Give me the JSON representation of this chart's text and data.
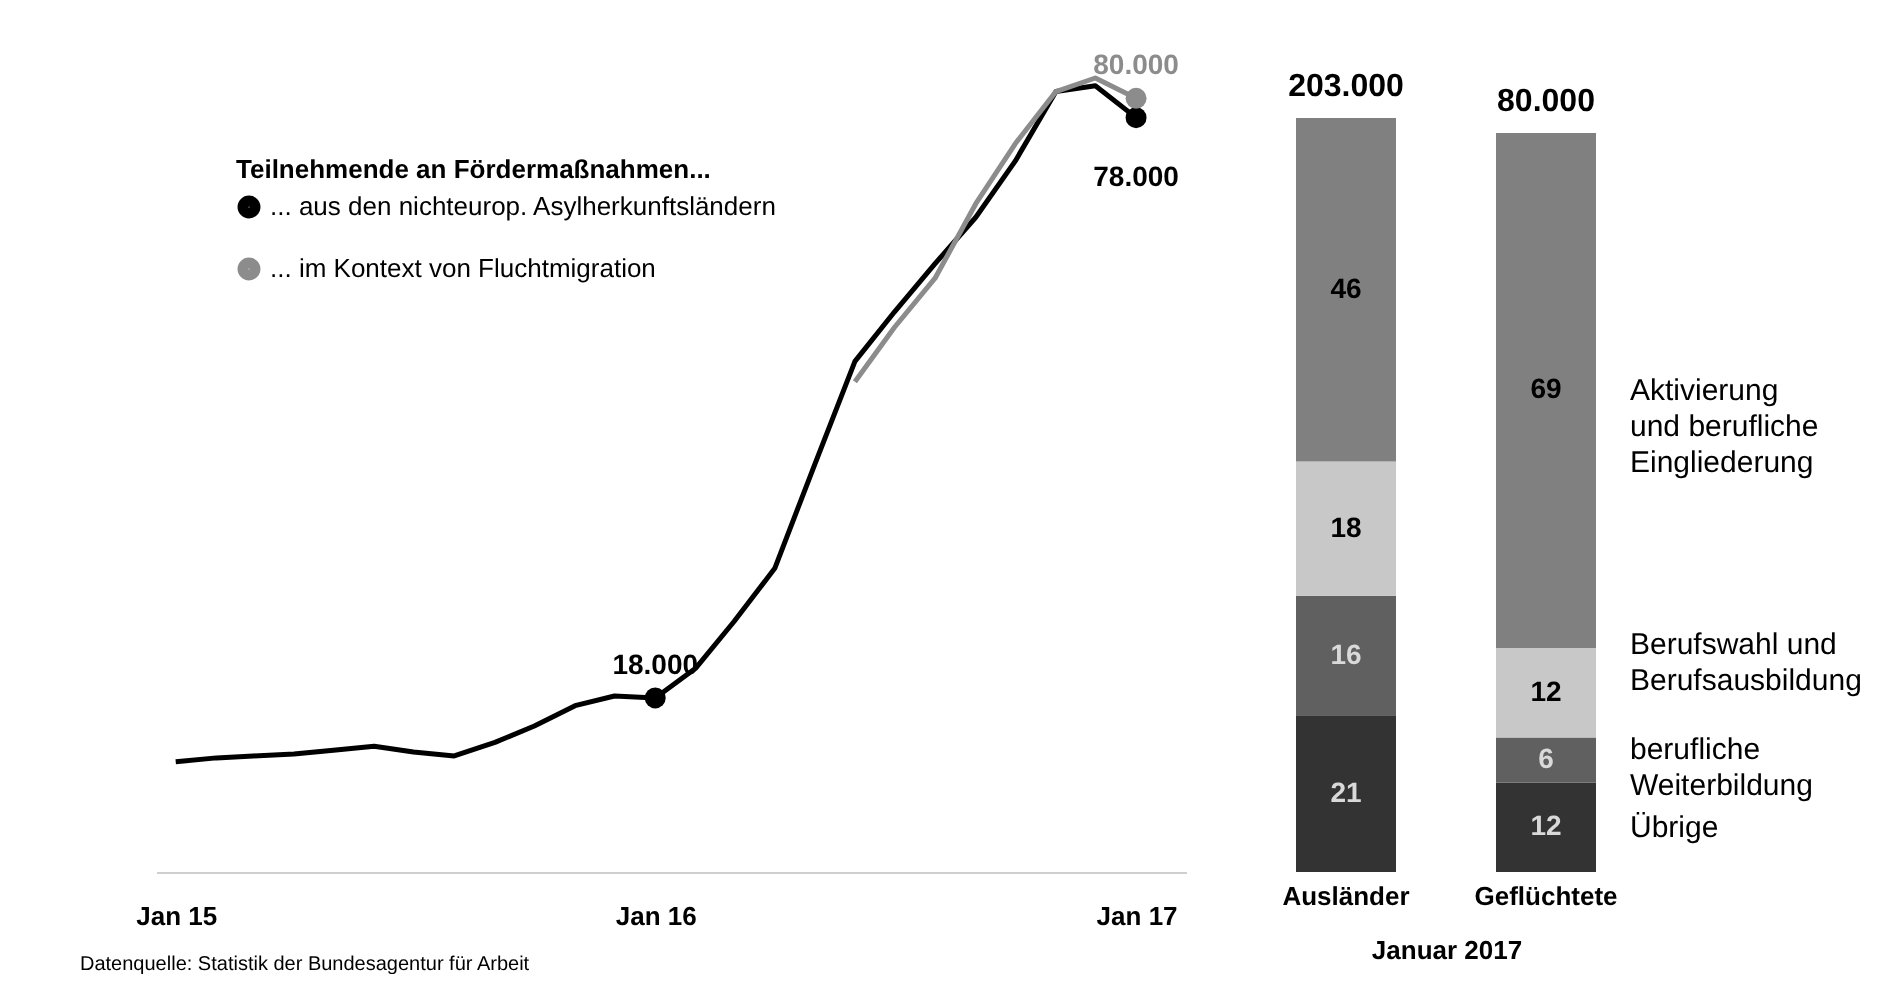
{
  "chart_data": [
    {
      "type": "line",
      "legend_title": "Teilnehmende an Fördermaßnahmen...",
      "legend": "top left",
      "tick_labels": "x",
      "grid": false,
      "x": [
        "2015-01",
        "2015-02",
        "2015-03",
        "2015-04",
        "2015-05",
        "2015-06",
        "2015-07",
        "2015-08",
        "2015-09",
        "2015-10",
        "2015-11",
        "2015-12",
        "2016-01",
        "2016-02",
        "2016-03",
        "2016-04",
        "2016-05",
        "2016-06",
        "2016-07",
        "2016-08",
        "2016-09",
        "2016-10",
        "2016-11",
        "2016-12",
        "2017-01"
      ],
      "xlim": [
        "2014-12-17",
        "2017-02-08"
      ],
      "xticks": [
        {
          "value": "2015-01",
          "label": "Jan 15"
        },
        {
          "value": "2016-01",
          "label": "Jan 16"
        },
        {
          "value": "2017-01",
          "label": "Jan 17"
        }
      ],
      "series": [
        {
          "name": "... aus den nichteurop. Asylherkunftsländern",
          "color": "#000000",
          "values": [
            11400,
            11800,
            12000,
            12200,
            12600,
            13000,
            12400,
            12000,
            13400,
            15100,
            17200,
            18200,
            18000,
            21100,
            25900,
            31400,
            42000,
            52800,
            57900,
            62900,
            67700,
            73500,
            80700,
            81300,
            78000
          ],
          "value_labels": [
            null,
            null,
            null,
            null,
            null,
            null,
            null,
            null,
            null,
            null,
            null,
            null,
            "18.000",
            null,
            null,
            null,
            null,
            null,
            null,
            null,
            null,
            null,
            null,
            null,
            "78.000"
          ]
        },
        {
          "name": "... im Kontext von Fluchtmigration",
          "color": "#8c8c8c",
          "x": [
            "2016-06",
            "2016-07",
            "2016-08",
            "2016-09",
            "2016-10",
            "2016-11",
            "2016-12",
            "2017-01"
          ],
          "values": [
            50700,
            56300,
            61400,
            69100,
            75300,
            80700,
            82100,
            80000
          ],
          "value_labels": [
            null,
            null,
            null,
            null,
            null,
            null,
            null,
            "80.000"
          ]
        }
      ],
      "annotations": [
        "Datenquelle: Statistik der Bundesagentur für Arbeit"
      ]
    },
    {
      "type": "bar",
      "stacked": true,
      "data_labels": true,
      "legend": "right",
      "tick_labels": "x",
      "xlabel": "Januar 2017",
      "categories": [
        "Ausländer",
        "Geflüchtete"
      ],
      "annotations": [
        {
          "text": "203.000",
          "x": "Ausländer",
          "y": 101
        },
        {
          "text": "80.000",
          "x": "Geflüchtete",
          "y": 99
        }
      ],
      "series": [
        {
          "name": "Übrige",
          "color": "#333333",
          "values": [
            21,
            12
          ]
        },
        {
          "name": "berufliche Weiterbildung",
          "color": "#606060",
          "values": [
            16,
            6
          ]
        },
        {
          "name": "Berufswahl und Berufsausbildung",
          "color": "#c8c8c8",
          "values": [
            18,
            12
          ]
        },
        {
          "name": "Aktivierung und berufliche Eingliederung",
          "color": "#808080",
          "values": [
            46,
            69
          ]
        }
      ]
    }
  ]
}
